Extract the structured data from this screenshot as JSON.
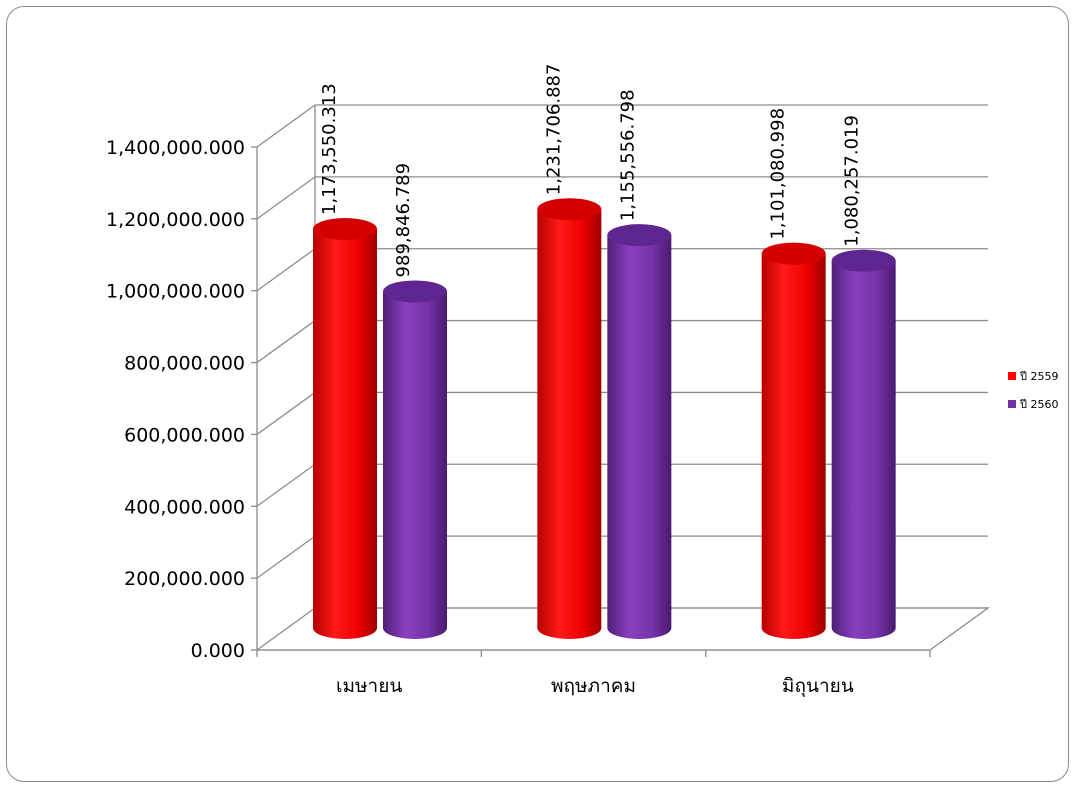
{
  "chart_data": {
    "type": "bar",
    "style": "3d-cylinder",
    "categories": [
      "เมษายน",
      "พฤษภาคม",
      "มิถุนายน"
    ],
    "series": [
      {
        "name": "ปี 2559",
        "color": "#ff0000",
        "values": [
          1173550313,
          1231706887,
          1101080998
        ],
        "labels": [
          "1,173,550.313",
          "1,231,706.887",
          "1,101,080.998"
        ]
      },
      {
        "name": "ปี 2560",
        "color": "#7030a0",
        "values": [
          989846789,
          1155556798,
          1080257019
        ],
        "labels": [
          "989,846.789",
          "1,155,556.798",
          "1,080,257.019"
        ]
      }
    ],
    "y_ticks": [
      "0.000",
      "200,000.000",
      "400,000.000",
      "600,000.000",
      "800,000.000",
      "1,000,000.000",
      "1,200,000.000",
      "1,400,000.000"
    ],
    "ylim": [
      0,
      1400000000
    ],
    "grid": true,
    "legend_position": "right"
  }
}
